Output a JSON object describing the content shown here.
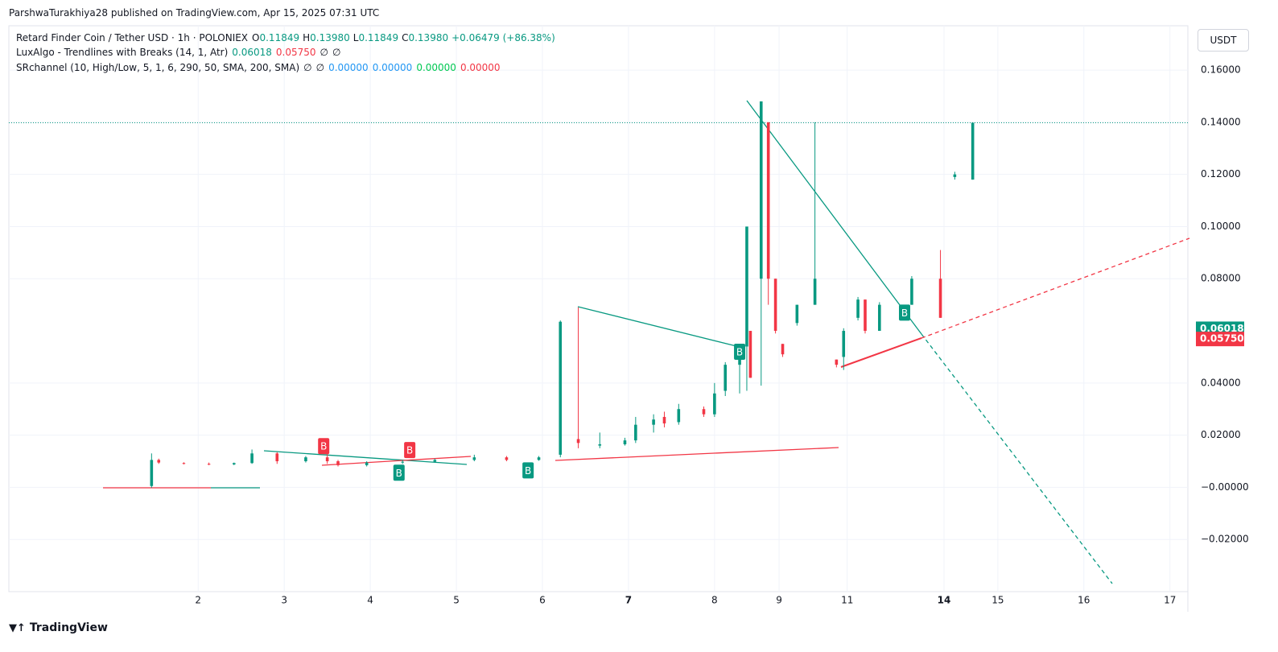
{
  "header": {
    "publisher": "ParshwaTurakhiya28 published on TradingView.com, Apr 15, 2025 07:31 UTC",
    "logo": "TradingView",
    "currency_button": "USDT"
  },
  "chart_data": {
    "type": "candlestick",
    "legend": {
      "symbol": "Retard Finder Coin / Tether USD · 1h · POLONIEX",
      "ohlc": [
        {
          "label": "O",
          "value": 0.11849
        },
        {
          "label": "H",
          "value": 0.1398
        },
        {
          "label": "L",
          "value": 0.11849
        },
        {
          "label": "C",
          "value": 0.1398
        }
      ],
      "ohlc_labels": [
        "0.11849",
        "0.13980",
        "0.11849",
        "0.13980"
      ],
      "change": "+0.06479 (+86.38%)",
      "indicators": [
        {
          "name": "LuxAlgo - Trendlines with Breaks (14, 1, Atr)",
          "values": [
            0.06018,
            0.0575
          ],
          "value_labels": [
            "0.06018",
            "0.05750"
          ],
          "colors": [
            "#089981",
            "#f23645"
          ],
          "empty": [
            "∅",
            "∅"
          ]
        },
        {
          "name": "SRchannel (10, High/Low, 5, 1, 6, 290, 50, SMA, 200, SMA)",
          "empty": [
            "∅",
            "∅"
          ],
          "values": [
            0,
            0,
            0,
            0
          ],
          "value_labels": [
            "0.00000",
            "0.00000",
            "0.00000",
            "0.00000"
          ],
          "colors": [
            "#2196f3",
            "#2196f3",
            "#00c853",
            "#f23645"
          ]
        }
      ]
    },
    "colors": {
      "up": "#089981",
      "down": "#f23645"
    },
    "x": [
      -13,
      -11,
      -4,
      3,
      10,
      15,
      22,
      30,
      36,
      39,
      47,
      57,
      66,
      77,
      86,
      95,
      101,
      106,
      112,
      119,
      122,
      127,
      130,
      134,
      141,
      144,
      147,
      151,
      153,
      154,
      157,
      159,
      161,
      163,
      167,
      172,
      178,
      180,
      184,
      186,
      190,
      199,
      207,
      211,
      216
    ],
    "open": [
      0.0005,
      0.0105,
      0.0093,
      0.009,
      0.0088,
      0.0093,
      0.013,
      0.01,
      0.0115,
      0.01,
      0.0085,
      0.0095,
      0.0098,
      0.0105,
      0.0115,
      0.0105,
      0.0125,
      0.0185,
      0.016,
      0.0165,
      0.018,
      0.024,
      0.027,
      0.025,
      0.03,
      0.028,
      0.037,
      0.047,
      0.054,
      0.06,
      0.08,
      0.14,
      0.08,
      0.055,
      0.063,
      0.07,
      0.049,
      0.05,
      0.065,
      0.072,
      0.06,
      0.07,
      0.08,
      0.119,
      0.118
    ],
    "high": [
      0.013,
      0.011,
      0.0096,
      0.0095,
      0.0095,
      0.0145,
      0.0135,
      0.012,
      0.014,
      0.0105,
      0.01,
      0.0105,
      0.011,
      0.0125,
      0.012,
      0.012,
      0.064,
      0.069,
      0.021,
      0.019,
      0.027,
      0.028,
      0.029,
      0.032,
      0.031,
      0.04,
      0.048,
      0.055,
      0.1,
      0.06,
      0.148,
      0.14,
      0.08,
      0.055,
      0.07,
      0.14,
      0.049,
      0.061,
      0.073,
      0.072,
      0.071,
      0.081,
      0.091,
      0.121,
      0.14
    ],
    "low": [
      -0.0002,
      0.009,
      0.0088,
      0.0085,
      0.0085,
      0.009,
      0.009,
      0.0095,
      0.009,
      0.008,
      0.008,
      0.009,
      0.0095,
      0.01,
      0.01,
      0.0102,
      0.0115,
      0.015,
      0.015,
      0.016,
      0.017,
      0.021,
      0.023,
      0.024,
      0.027,
      0.027,
      0.035,
      0.036,
      0.037,
      0.042,
      0.039,
      0.07,
      0.059,
      0.05,
      0.062,
      0.07,
      0.046,
      0.045,
      0.064,
      0.059,
      0.06,
      0.07,
      0.065,
      0.118,
      0.118
    ],
    "close": [
      0.0105,
      0.0095,
      0.009,
      0.0088,
      0.0093,
      0.013,
      0.01,
      0.0115,
      0.01,
      0.0085,
      0.0095,
      0.0098,
      0.0105,
      0.0115,
      0.0105,
      0.0115,
      0.0635,
      0.017,
      0.0165,
      0.018,
      0.024,
      0.026,
      0.0245,
      0.03,
      0.028,
      0.036,
      0.047,
      0.054,
      0.1,
      0.042,
      0.148,
      0.08,
      0.06,
      0.051,
      0.07,
      0.08,
      0.047,
      0.06,
      0.072,
      0.06,
      0.07,
      0.08,
      0.065,
      0.12,
      0.1398
    ],
    "signals": [
      {
        "label": "B",
        "x": 35,
        "y": 0.0158,
        "side": "down"
      },
      {
        "label": "B",
        "x": 59,
        "y": 0.0143,
        "side": "down"
      },
      {
        "label": "B",
        "x": 56,
        "y": 0.0056,
        "side": "up"
      },
      {
        "label": "B",
        "x": 92,
        "y": 0.0065,
        "side": "up"
      },
      {
        "label": "B",
        "x": 151,
        "y": 0.052,
        "side": "up"
      },
      {
        "label": "B",
        "x": 197,
        "y": 0.067,
        "side": "up"
      }
    ],
    "xlim": [
      -52.8,
      276
    ],
    "xticks": [
      {
        "value": 0,
        "label": "2"
      },
      {
        "value": 24,
        "label": "3"
      },
      {
        "value": 48,
        "label": "4"
      },
      {
        "value": 72,
        "label": "5"
      },
      {
        "value": 96,
        "label": "6"
      },
      {
        "value": 120,
        "label": "7",
        "bold": true
      },
      {
        "value": 144,
        "label": "8"
      },
      {
        "value": 162,
        "label": "9"
      },
      {
        "value": 181,
        "label": "11"
      },
      {
        "value": 208,
        "label": "14",
        "bold": true
      },
      {
        "value": 223,
        "label": "15"
      },
      {
        "value": 247,
        "label": "16"
      },
      {
        "value": 271,
        "label": "17"
      }
    ],
    "ylim": [
      -0.04,
      0.177
    ],
    "yticks": [
      {
        "value": 0.16,
        "label": "0.16000"
      },
      {
        "value": 0.14,
        "label": "0.14000"
      },
      {
        "value": 0.12,
        "label": "0.12000"
      },
      {
        "value": 0.1,
        "label": "0.10000"
      },
      {
        "value": 0.08,
        "label": "0.08000"
      },
      {
        "value": 0.04,
        "label": "0.04000"
      },
      {
        "value": 0.02,
        "label": "0.02000"
      },
      {
        "value": 0,
        "label": "−0.00000"
      },
      {
        "value": -0.02,
        "label": "−0.02000"
      }
    ],
    "grid": true
  }
}
